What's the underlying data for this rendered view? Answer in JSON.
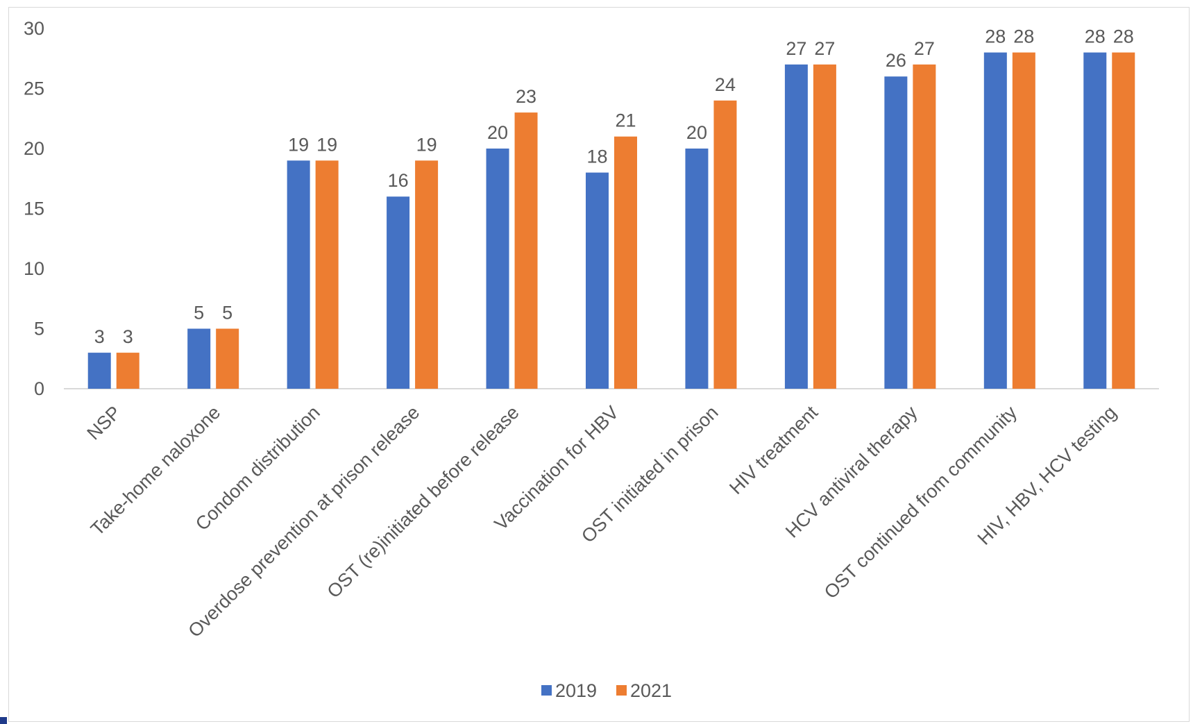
{
  "chart_data": {
    "type": "bar",
    "categories": [
      "NSP",
      "Take-home naloxone",
      "Condom distribution",
      "Overdose prevention at prison release",
      "OST (re)initiated before release",
      "Vaccination for HBV",
      "OST initiated in prison",
      "HIV treatment",
      "HCV antiviral therapy",
      "OST continued from community",
      "HIV, HBV, HCV testing"
    ],
    "series": [
      {
        "name": "2019",
        "color": "#4472c4",
        "values": [
          3,
          5,
          19,
          16,
          20,
          18,
          20,
          27,
          26,
          28,
          28
        ]
      },
      {
        "name": "2021",
        "color": "#ed7d31",
        "values": [
          3,
          5,
          19,
          19,
          23,
          21,
          24,
          27,
          27,
          28,
          28
        ]
      }
    ],
    "ylim": [
      0,
      30
    ],
    "yticks": [
      0,
      5,
      10,
      15,
      20,
      25,
      30
    ],
    "grid": false,
    "data_labels": true,
    "legend_position": "bottom"
  }
}
